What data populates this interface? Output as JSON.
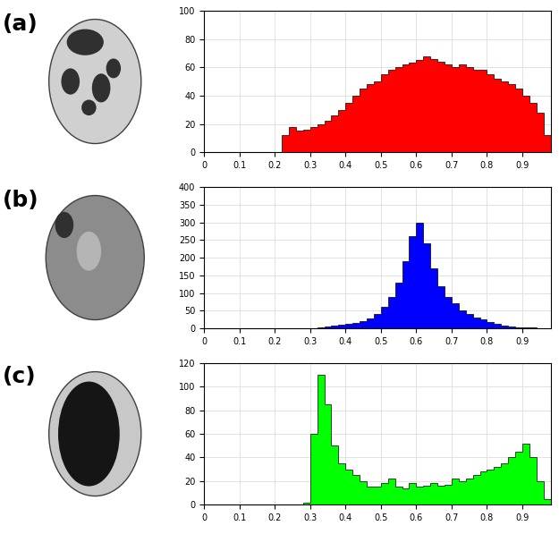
{
  "chart_data": [
    {
      "type": "histogram",
      "annotations": [
        "(a)"
      ],
      "color": "#ff0000",
      "bins": [
        0.2,
        0.22,
        0.24,
        0.26,
        0.28,
        0.3,
        0.32,
        0.34,
        0.36,
        0.38,
        0.4,
        0.42,
        0.44,
        0.46,
        0.48,
        0.5,
        0.52,
        0.54,
        0.56,
        0.58,
        0.6,
        0.62,
        0.64,
        0.66,
        0.68,
        0.7,
        0.72,
        0.74,
        0.76,
        0.78,
        0.8,
        0.82,
        0.84,
        0.86,
        0.88,
        0.9,
        0.92,
        0.94,
        0.96,
        0.98
      ],
      "values": [
        0,
        12,
        18,
        15,
        16,
        18,
        20,
        22,
        26,
        30,
        35,
        40,
        45,
        48,
        50,
        55,
        58,
        60,
        62,
        63,
        65,
        68,
        66,
        64,
        62,
        60,
        62,
        60,
        58,
        58,
        55,
        52,
        50,
        48,
        45,
        40,
        35,
        28,
        12
      ],
      "xlim": [
        0,
        0.98
      ],
      "xticks": [
        0,
        0.1,
        0.2,
        0.3,
        0.4,
        0.5,
        0.6,
        0.7,
        0.8,
        0.9
      ],
      "ylim": [
        0,
        100
      ],
      "yticks": [
        0,
        20,
        40,
        60,
        80,
        100
      ],
      "grid": true
    },
    {
      "type": "histogram",
      "annotations": [
        "(b)"
      ],
      "color": "#0000ff",
      "bins": [
        0.3,
        0.32,
        0.34,
        0.36,
        0.38,
        0.4,
        0.42,
        0.44,
        0.46,
        0.48,
        0.5,
        0.52,
        0.54,
        0.56,
        0.58,
        0.6,
        0.62,
        0.64,
        0.66,
        0.68,
        0.7,
        0.72,
        0.74,
        0.76,
        0.78,
        0.8,
        0.82,
        0.84,
        0.86,
        0.88,
        0.9,
        0.92,
        0.94,
        0.96,
        0.98
      ],
      "values": [
        0,
        2,
        5,
        8,
        10,
        12,
        15,
        20,
        28,
        40,
        60,
        90,
        130,
        190,
        260,
        300,
        240,
        170,
        120,
        90,
        70,
        50,
        40,
        30,
        25,
        18,
        12,
        8,
        5,
        4,
        3,
        2,
        1,
        0
      ],
      "xlim": [
        0,
        0.98
      ],
      "xticks": [
        0,
        0.1,
        0.2,
        0.3,
        0.4,
        0.5,
        0.6,
        0.7,
        0.8,
        0.9
      ],
      "ylim": [
        0,
        400
      ],
      "yticks": [
        0,
        50,
        100,
        150,
        200,
        250,
        300,
        350,
        400
      ],
      "grid": true
    },
    {
      "type": "histogram",
      "annotations": [
        "(c)"
      ],
      "color": "#00ff00",
      "bins": [
        0.26,
        0.28,
        0.3,
        0.32,
        0.34,
        0.36,
        0.38,
        0.4,
        0.42,
        0.44,
        0.46,
        0.48,
        0.5,
        0.52,
        0.54,
        0.56,
        0.58,
        0.6,
        0.62,
        0.64,
        0.66,
        0.68,
        0.7,
        0.72,
        0.74,
        0.76,
        0.78,
        0.8,
        0.82,
        0.84,
        0.86,
        0.88,
        0.9,
        0.92,
        0.94,
        0.96,
        0.98
      ],
      "values": [
        0,
        2,
        60,
        110,
        85,
        50,
        35,
        30,
        25,
        20,
        15,
        15,
        18,
        22,
        15,
        14,
        18,
        15,
        16,
        18,
        16,
        17,
        22,
        20,
        22,
        25,
        28,
        30,
        32,
        35,
        40,
        45,
        52,
        40,
        20,
        5
      ],
      "xlim": [
        0,
        0.98
      ],
      "xticks": [
        0,
        0.1,
        0.2,
        0.3,
        0.4,
        0.5,
        0.6,
        0.7,
        0.8,
        0.9
      ],
      "ylim": [
        0,
        120
      ],
      "yticks": [
        0,
        20,
        40,
        60,
        80,
        100,
        120
      ],
      "grid": true
    }
  ]
}
